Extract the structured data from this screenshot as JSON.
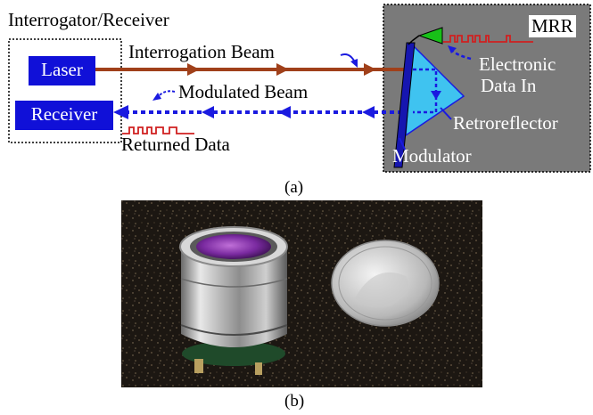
{
  "diagram": {
    "interrogator_title": "Interrogator/Receiver",
    "laser_label": "Laser",
    "receiver_label": "Receiver",
    "interrogation_beam_label": "Interrogation Beam",
    "modulated_beam_label": "Modulated Beam",
    "returned_data_label": "Returned Data",
    "mrr_label": "MRR",
    "electronic_data_label_line1": "Electronic",
    "electronic_data_label_line2": "Data In",
    "retroreflector_label": "Retroreflector",
    "modulator_label": "Modulator",
    "panel_a_caption": "(a)",
    "panel_b_caption": "(b)",
    "colors": {
      "laser_box": "#1010d8",
      "interrogation_beam": "#a0401a",
      "modulated_beam": "#1a1ae0",
      "mrr_panel": "#7a7a7a",
      "retroreflector": "#3fc3f0",
      "data_pulses": "#d02020",
      "transmitter": "#18c018"
    }
  }
}
